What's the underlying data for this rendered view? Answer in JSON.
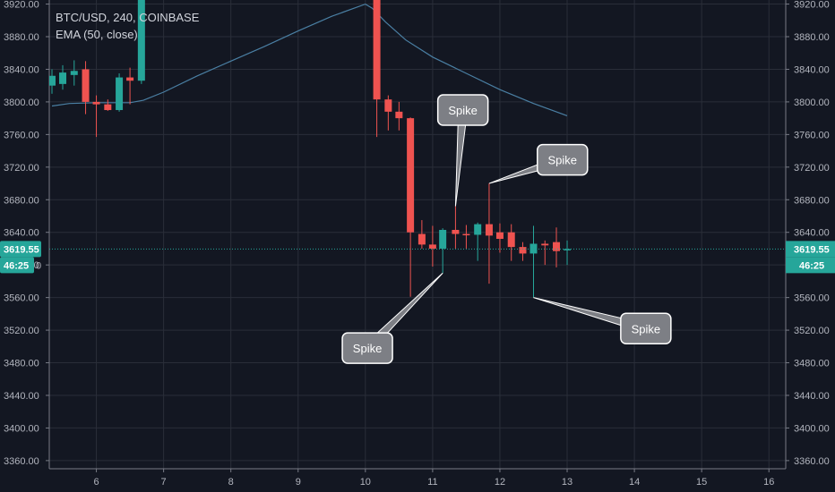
{
  "legend": {
    "symbol_line": "BTC/USD, 240, COINBASE",
    "indicator_line": "EMA (50, close)"
  },
  "colors": {
    "background": "#131722",
    "grid": "#2a2e39",
    "axis_text": "#b2b5be",
    "up": "#26a69a",
    "down": "#ef5350",
    "ema": "#4a7fa3",
    "price_line": "#26a69a",
    "callout_fill": "#7d7f85",
    "callout_text": "#ffffff"
  },
  "chart_data": {
    "type": "candlestick",
    "title": "BTC/USD, 240, COINBASE",
    "xlabel": "",
    "ylabel": "",
    "x_ticks": [
      6,
      7,
      8,
      9,
      10,
      11,
      12,
      13,
      14,
      15,
      16
    ],
    "xlim": [
      5.3,
      16.25
    ],
    "y_ticks": [
      "3920.00",
      "3880.00",
      "3840.00",
      "3800.00",
      "3760.00",
      "3720.00",
      "3680.00",
      "3640.00",
      "3600.00",
      "3560.00",
      "3520.00",
      "3480.00",
      "3440.00",
      "3400.00",
      "3360.00"
    ],
    "ylim": [
      3350,
      3925
    ],
    "grid": true,
    "candles": [
      {
        "t": 5.34,
        "o": 3820,
        "h": 3840,
        "l": 3810,
        "c": 3832
      },
      {
        "t": 5.5,
        "o": 3822,
        "h": 3845,
        "l": 3815,
        "c": 3836
      },
      {
        "t": 5.67,
        "o": 3833,
        "h": 3851,
        "l": 3820,
        "c": 3838
      },
      {
        "t": 5.84,
        "o": 3840,
        "h": 3850,
        "l": 3785,
        "c": 3800
      },
      {
        "t": 6.0,
        "o": 3800,
        "h": 3808,
        "l": 3757,
        "c": 3797
      },
      {
        "t": 6.17,
        "o": 3797,
        "h": 3803,
        "l": 3789,
        "c": 3790
      },
      {
        "t": 6.34,
        "o": 3790,
        "h": 3835,
        "l": 3788,
        "c": 3830
      },
      {
        "t": 6.5,
        "o": 3830,
        "h": 3842,
        "l": 3797,
        "c": 3826
      },
      {
        "t": 6.67,
        "o": 3826,
        "h": 3950,
        "l": 3822,
        "c": 3950
      },
      {
        "t": 10.17,
        "o": 3950,
        "h": 3950,
        "l": 3757,
        "c": 3803
      },
      {
        "t": 10.34,
        "o": 3803,
        "h": 3808,
        "l": 3765,
        "c": 3788
      },
      {
        "t": 10.5,
        "o": 3788,
        "h": 3800,
        "l": 3765,
        "c": 3780
      },
      {
        "t": 10.67,
        "o": 3780,
        "h": 3781,
        "l": 3561,
        "c": 3640
      },
      {
        "t": 10.84,
        "o": 3638,
        "h": 3655,
        "l": 3620,
        "c": 3625
      },
      {
        "t": 11.0,
        "o": 3625,
        "h": 3648,
        "l": 3598,
        "c": 3620
      },
      {
        "t": 11.15,
        "o": 3620,
        "h": 3645,
        "l": 3590,
        "c": 3643
      },
      {
        "t": 11.34,
        "o": 3643,
        "h": 3672,
        "l": 3620,
        "c": 3638
      },
      {
        "t": 11.5,
        "o": 3638,
        "h": 3649,
        "l": 3620,
        "c": 3637
      },
      {
        "t": 11.67,
        "o": 3637,
        "h": 3652,
        "l": 3605,
        "c": 3650
      },
      {
        "t": 11.84,
        "o": 3650,
        "h": 3700,
        "l": 3577,
        "c": 3636
      },
      {
        "t": 12.0,
        "o": 3640,
        "h": 3651,
        "l": 3615,
        "c": 3632
      },
      {
        "t": 12.17,
        "o": 3640,
        "h": 3650,
        "l": 3605,
        "c": 3622
      },
      {
        "t": 12.34,
        "o": 3622,
        "h": 3628,
        "l": 3605,
        "c": 3614
      },
      {
        "t": 12.5,
        "o": 3614,
        "h": 3648,
        "l": 3560,
        "c": 3626
      },
      {
        "t": 12.67,
        "o": 3626,
        "h": 3630,
        "l": 3600,
        "c": 3624
      },
      {
        "t": 12.84,
        "o": 3628,
        "h": 3646,
        "l": 3597,
        "c": 3617
      },
      {
        "t": 13.0,
        "o": 3619,
        "h": 3630,
        "l": 3600,
        "c": 3619.55
      }
    ],
    "ema_series": {
      "x": [
        5.34,
        5.6,
        6.0,
        6.5,
        6.7,
        7.0,
        7.5,
        8.0,
        8.5,
        9.0,
        9.5,
        10.0,
        10.1,
        10.3,
        10.6,
        11.0,
        11.5,
        12.0,
        12.5,
        13.0
      ],
      "y": [
        3795,
        3798,
        3799,
        3799,
        3802,
        3812,
        3832,
        3850,
        3868,
        3887,
        3905,
        3920,
        3915,
        3898,
        3876,
        3855,
        3835,
        3815,
        3798,
        3783
      ]
    },
    "last_price": 3619.55,
    "last_price_label": "3619.55",
    "countdown_label": "46:25",
    "partial_tick_label": "0",
    "annotations": [
      {
        "text": "Spike",
        "tip": [
          11.34,
          3672
        ],
        "box": [
          11.45,
          3790
        ]
      },
      {
        "text": "Spike",
        "tip": [
          11.84,
          3700
        ],
        "box": [
          12.93,
          3729
        ]
      },
      {
        "text": "Spike",
        "tip": [
          11.15,
          3590
        ],
        "box": [
          10.03,
          3498
        ]
      },
      {
        "text": "Spike",
        "tip": [
          12.5,
          3560
        ],
        "box": [
          14.17,
          3522
        ]
      }
    ]
  }
}
